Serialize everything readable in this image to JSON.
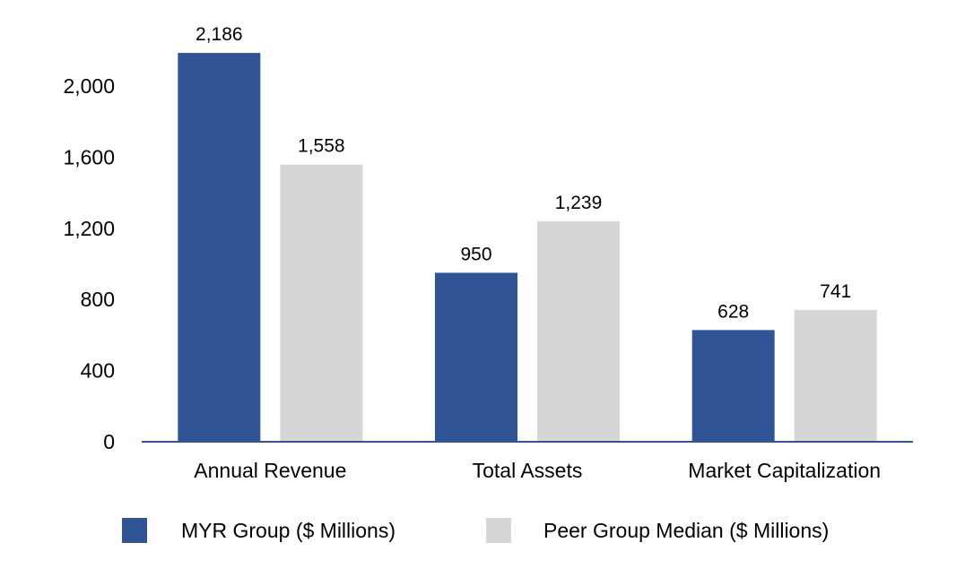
{
  "chart_data": {
    "type": "bar",
    "title": "",
    "xlabel": "",
    "ylabel": "",
    "categories": [
      "Annual Revenue",
      "Total Assets",
      "Market Capitalization"
    ],
    "series": [
      {
        "name": "MYR Group ($ Millions)",
        "color": "#315496",
        "values": [
          2186,
          950,
          628
        ],
        "labels": [
          "2,186",
          "950",
          "628"
        ]
      },
      {
        "name": "Peer Group Median ($ Millions)",
        "color": "#d6d6d6",
        "values": [
          1558,
          1239,
          741
        ],
        "labels": [
          "1,558",
          "1,239",
          "741"
        ]
      }
    ],
    "ylim": [
      0,
      2200
    ],
    "yticks": [
      0,
      400,
      800,
      1200,
      1600,
      2000
    ],
    "ytick_labels": [
      "0",
      "400",
      "800",
      "1,200",
      "1,600",
      "2,000"
    ],
    "grid": false,
    "legend_position": "bottom",
    "axis_color": "#315496"
  }
}
